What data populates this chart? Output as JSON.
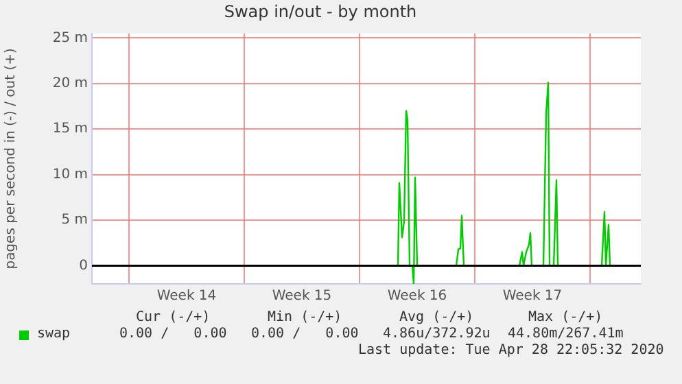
{
  "chart_data": {
    "type": "line",
    "title": "Swap in/out - by month",
    "ylabel": "pages per second in (-) / out (+)",
    "legend": "bottom",
    "grid": true,
    "marker": "none",
    "line_style": "solid",
    "xlim": [
      "2020-03-27T18:00",
      "2020-04-30T02:00"
    ],
    "xticks": [
      {
        "value": "2020-03-30T00:00",
        "label": null
      },
      {
        "value": "2020-04-02T12:00",
        "label": "Week 14"
      },
      {
        "value": "2020-04-06T00:00",
        "label": null
      },
      {
        "value": "2020-04-09T12:00",
        "label": "Week 15"
      },
      {
        "value": "2020-04-13T00:00",
        "label": null
      },
      {
        "value": "2020-04-16T12:00",
        "label": "Week 16"
      },
      {
        "value": "2020-04-20T00:00",
        "label": null
      },
      {
        "value": "2020-04-23T12:00",
        "label": "Week 17"
      },
      {
        "value": "2020-04-27T00:00",
        "label": null
      }
    ],
    "ylim": [
      -2,
      25.5
    ],
    "yticks": [
      0,
      {
        "value": 5,
        "label": "5 m"
      },
      {
        "value": 10,
        "label": "10 m"
      },
      {
        "value": 15,
        "label": "15 m"
      },
      {
        "value": 20,
        "label": "20 m"
      },
      {
        "value": 25,
        "label": "25 m"
      }
    ],
    "ref_lines": [
      {
        "axis": "y",
        "value": 0,
        "color": "#000000"
      }
    ],
    "series": [
      {
        "name": "swap",
        "color": "#00cc00",
        "x": [
          "2020-03-27T18:00",
          "2020-04-15T08:00",
          "2020-04-15T10:00",
          "2020-04-15T14:00",
          "2020-04-15T17:00",
          "2020-04-15T20:00",
          "2020-04-15T22:00",
          "2020-04-16T01:00",
          "2020-04-16T05:00",
          "2020-04-16T07:00",
          "2020-04-16T09:00",
          "2020-04-16T12:00",
          "2020-04-18T21:00",
          "2020-04-19T00:00",
          "2020-04-19T03:00",
          "2020-04-19T05:00",
          "2020-04-19T08:00",
          "2020-04-22T17:00",
          "2020-04-22T21:00",
          "2020-04-22T23:00",
          "2020-04-23T03:00",
          "2020-04-23T07:00",
          "2020-04-23T09:00",
          "2020-04-23T11:00",
          "2020-04-24T04:00",
          "2020-04-24T08:00",
          "2020-04-24T11:00",
          "2020-04-24T13:00",
          "2020-04-24T19:00",
          "2020-04-24T23:00",
          "2020-04-25T01:00",
          "2020-04-27T17:00",
          "2020-04-27T21:00",
          "2020-04-27T23:00",
          "2020-04-28T03:00",
          "2020-04-28T05:00",
          "2020-04-28T22:00"
        ],
        "values": [
          0,
          0,
          9.1,
          3.1,
          4.9,
          17,
          16,
          0,
          0,
          -2,
          9.7,
          0,
          0,
          1.8,
          1.9,
          5.5,
          0,
          0,
          1.5,
          0,
          1.5,
          2.3,
          3.6,
          0,
          0,
          16.8,
          20.1,
          0,
          0,
          9.4,
          0,
          0,
          5.9,
          0,
          4.5,
          0,
          0
        ]
      }
    ],
    "annotations": [
      "Cur (-/+)",
      "Min (-/+)",
      "Avg (-/+)",
      "Max (-/+)",
      "0.00 /   0.00",
      "0.00 /   0.00",
      "4.86u/372.92u",
      "44.80m/267.41m",
      "Last update: Tue Apr 28 22:05:32 2020"
    ]
  }
}
